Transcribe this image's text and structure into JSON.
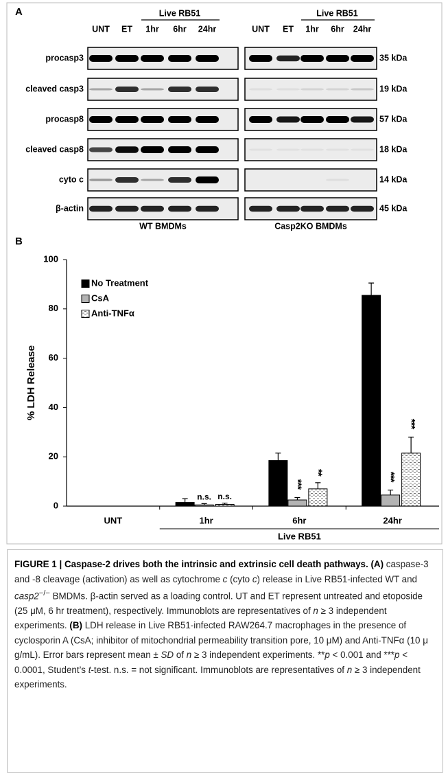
{
  "panel_a": {
    "label": "A",
    "blots": [
      {
        "name": "WT BMDMs",
        "lanes": [
          "UNT",
          "ET",
          "1hr",
          "6hr",
          "24hr"
        ],
        "lane_group": "Live RB51"
      },
      {
        "name": "Casp2KO BMDMs",
        "lanes": [
          "UNT",
          "ET",
          "1hr",
          "6hr",
          "24hr"
        ],
        "lane_group": "Live RB51"
      }
    ],
    "rows": [
      {
        "protein": "procasp3",
        "size": "35 kDa"
      },
      {
        "protein": "cleaved casp3",
        "size": "19 kDa"
      },
      {
        "protein": "procasp8",
        "size": "57 kDa"
      },
      {
        "protein": "cleaved casp8",
        "size": "18 kDa"
      },
      {
        "protein": "cyto c",
        "size": "14 kDa"
      },
      {
        "protein": "β-actin",
        "size": "45 kDa"
      }
    ]
  },
  "chart_data": {
    "type": "bar",
    "panel_label": "B",
    "ylabel": "% LDH Release",
    "categories": [
      "UNT",
      "1hr",
      "6hr",
      "24hr"
    ],
    "group_label": "Live RB51",
    "ylim": [
      0,
      100
    ],
    "yticks": [
      0,
      20,
      40,
      60,
      80,
      100
    ],
    "legend": "upper left",
    "series": [
      {
        "name": "No Treatment",
        "color": "#000000",
        "hatch": false,
        "values": [
          0,
          1.5,
          18.5,
          85.5
        ],
        "errors": [
          null,
          1.5,
          3,
          5
        ],
        "annotations": [
          null,
          null,
          null,
          null
        ]
      },
      {
        "name": "CsA",
        "color": "#b3b3b3",
        "hatch": false,
        "values": [
          0,
          0.5,
          2.5,
          4.5
        ],
        "errors": [
          null,
          0.5,
          1,
          2
        ],
        "annotations": [
          null,
          "n.s.",
          "***",
          "***"
        ]
      },
      {
        "name": "Anti-TNFα",
        "color": "#ffffff",
        "hatch": true,
        "values": [
          0,
          0.7,
          7,
          21.5
        ],
        "errors": [
          null,
          0.5,
          2.5,
          6.5
        ],
        "annotations": [
          null,
          "n.s.",
          "**",
          "***"
        ]
      }
    ]
  },
  "caption": {
    "parts": [
      "FIGURE 1 | Caspase-2 drives both the intrinsic and extrinsic cell death pathways.",
      "(A)",
      " caspase-3 and -8 cleavage (activation) as well as cytochrome ",
      "c",
      " (cyto ",
      "c",
      ") release in Live RB51-infected WT and ",
      "casp2",
      "−/−",
      " BMDMs. β-actin served as a loading control. UT and ET represent untreated and etoposide (25 μM, 6 hr treatment), respectively. Immunoblots are representatives of ",
      "n",
      " ≥ 3 independent experiments. ",
      "(B)",
      " LDH release in Live RB51-infected RAW264.7 macrophages in the presence of cyclosporin A (CsA; inhibitor of mitochondrial permeability transition pore, 10 μM) and Anti-TNFα (10 μ g/mL). Error bars represent mean ± ",
      "SD",
      " of ",
      "n",
      " ≥ 3 independent experiments. **",
      "p",
      " < 0.001 and ***",
      "p",
      " < 0.0001, Student’s ",
      "t",
      "-test. n.s. = not significant. Immunoblots are representatives of ",
      "n",
      " ≥ 3 independent experiments."
    ]
  }
}
